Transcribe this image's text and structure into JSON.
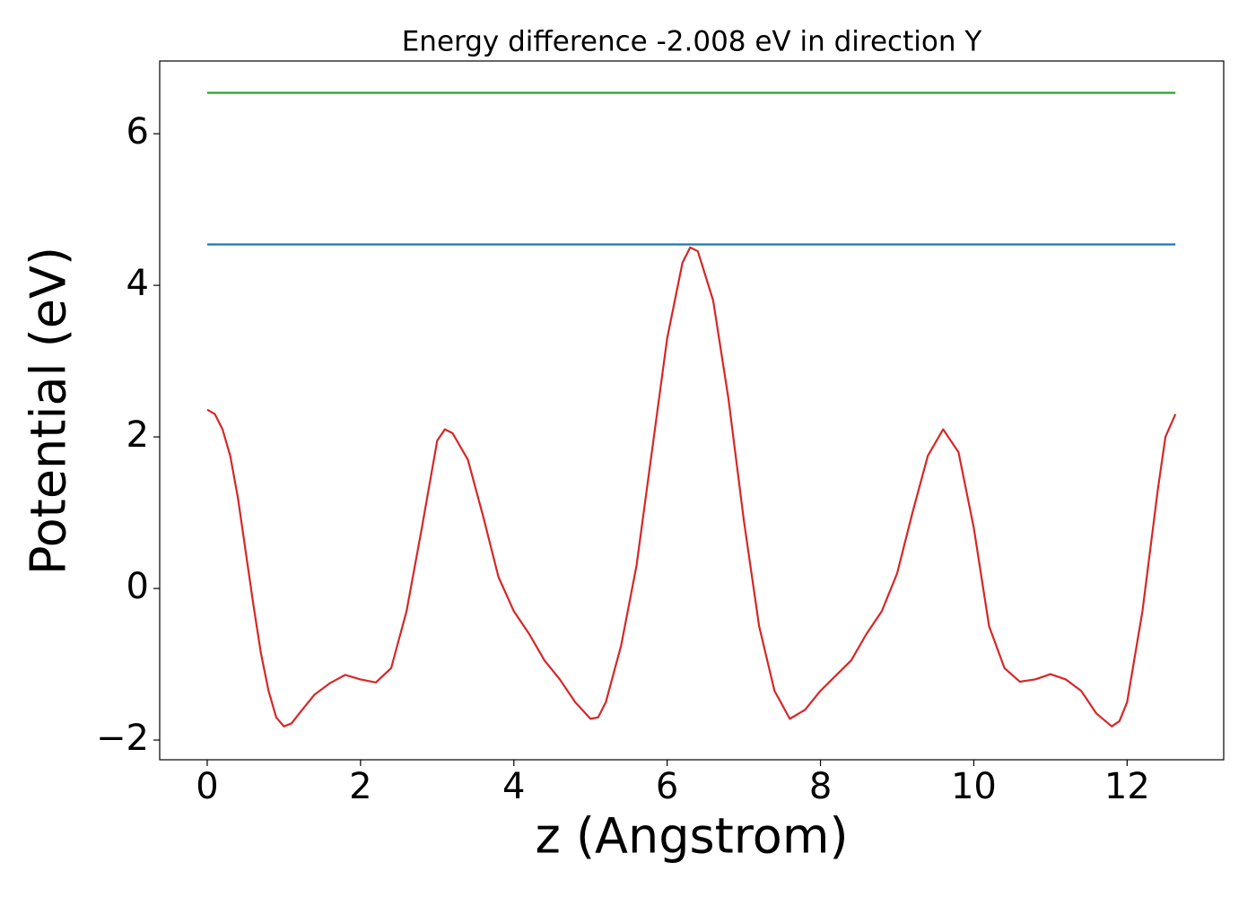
{
  "chart_data": {
    "type": "line",
    "title": "Energy difference -2.008 eV in direction Y",
    "xlabel": "z (Angstrom)",
    "ylabel": "Potential (eV)",
    "xlim": [
      -0.62,
      13.26
    ],
    "ylim": [
      -2.26,
      6.96
    ],
    "xticks": [
      0,
      2,
      4,
      6,
      8,
      10,
      12
    ],
    "yticks": [
      {
        "value": -2,
        "label": "−2"
      },
      0,
      2,
      4,
      6
    ],
    "series": [
      {
        "color": "#2ca02c",
        "x": [
          0,
          12.63
        ],
        "values": [
          6.54,
          6.54
        ]
      },
      {
        "color": "#1f77b4",
        "x": [
          0,
          12.63
        ],
        "values": [
          4.54,
          4.54
        ]
      },
      {
        "color": "#d62728",
        "x": [
          0,
          0.1,
          0.2,
          0.3,
          0.4,
          0.5,
          0.6,
          0.7,
          0.8,
          0.9,
          1.0,
          1.1,
          1.2,
          1.4,
          1.6,
          1.8,
          2.0,
          2.2,
          2.4,
          2.6,
          2.8,
          3.0,
          3.1,
          3.2,
          3.4,
          3.6,
          3.8,
          4.0,
          4.2,
          4.4,
          4.6,
          4.8,
          5.0,
          5.1,
          5.2,
          5.4,
          5.6,
          5.8,
          6.0,
          6.2,
          6.3,
          6.4,
          6.6,
          6.8,
          7.0,
          7.2,
          7.4,
          7.6,
          7.8,
          8.0,
          8.2,
          8.4,
          8.6,
          8.8,
          9.0,
          9.2,
          9.4,
          9.6,
          9.8,
          10.0,
          10.2,
          10.4,
          10.6,
          10.8,
          11.0,
          11.2,
          11.4,
          11.6,
          11.8,
          11.9,
          12.0,
          12.2,
          12.4,
          12.5,
          12.63
        ],
        "values": [
          2.36,
          2.3,
          2.1,
          1.75,
          1.2,
          0.5,
          -0.2,
          -0.85,
          -1.35,
          -1.7,
          -1.82,
          -1.78,
          -1.65,
          -1.4,
          -1.25,
          -1.14,
          -1.2,
          -1.24,
          -1.05,
          -0.3,
          0.8,
          1.95,
          2.1,
          2.05,
          1.7,
          0.95,
          0.15,
          -0.3,
          -0.6,
          -0.95,
          -1.2,
          -1.5,
          -1.72,
          -1.7,
          -1.5,
          -0.75,
          0.3,
          1.8,
          3.3,
          4.3,
          4.5,
          4.45,
          3.8,
          2.5,
          0.9,
          -0.5,
          -1.35,
          -1.72,
          -1.6,
          -1.35,
          -1.15,
          -0.95,
          -0.6,
          -0.3,
          0.2,
          1.0,
          1.75,
          2.1,
          1.8,
          0.8,
          -0.5,
          -1.05,
          -1.23,
          -1.2,
          -1.13,
          -1.2,
          -1.35,
          -1.65,
          -1.82,
          -1.75,
          -1.5,
          -0.3,
          1.3,
          2.0,
          2.3
        ]
      }
    ]
  }
}
